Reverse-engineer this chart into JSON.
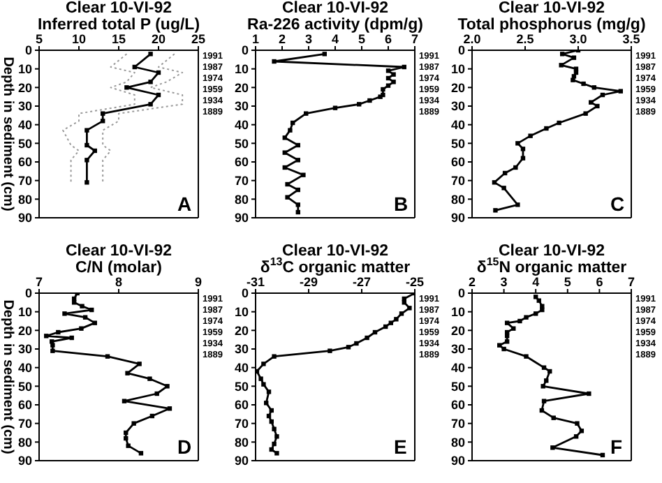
{
  "chart_data": [
    {
      "type": "line",
      "title": "Clear  10-VI-92",
      "subtitle": "Inferred total P (ug/L)",
      "ylabel": "Depth in sediment (cm)",
      "annotations": [
        "A",
        "1991",
        "1987",
        "1974",
        "1959",
        "1934",
        "1889"
      ],
      "xlim": [
        5,
        25
      ],
      "xticks": [
        5,
        10,
        15,
        20,
        25
      ],
      "ylim": [
        90,
        0
      ],
      "yticks": [
        0,
        10,
        20,
        30,
        40,
        50,
        60,
        70,
        80,
        90
      ],
      "series": [
        {
          "color": "#999999",
          "marker": "none",
          "line_style": "dotted",
          "x": [
            22,
            20,
            23,
            21,
            19,
            23,
            23,
            15,
            15,
            13,
            13,
            14,
            13,
            13
          ],
          "values": [
            2,
            9,
            12,
            17,
            20,
            24,
            29,
            34,
            38,
            43,
            51,
            54,
            59,
            71
          ]
        },
        {
          "color": "#999999",
          "marker": "none",
          "line_style": "dotted",
          "x": [
            16,
            14,
            17,
            16,
            14,
            17,
            17,
            10,
            10,
            8,
            9,
            10,
            9,
            9
          ],
          "values": [
            2,
            9,
            12,
            17,
            20,
            24,
            29,
            34,
            38,
            43,
            51,
            54,
            59,
            71
          ]
        },
        {
          "color": "#000000",
          "marker": "square",
          "line_style": "solid",
          "x": [
            19,
            17,
            20,
            19,
            16,
            20,
            19,
            13,
            13,
            11,
            11,
            12,
            11,
            11
          ],
          "values": [
            2,
            9,
            12,
            17,
            20,
            24,
            29,
            34,
            38,
            43,
            51,
            54,
            59,
            71
          ]
        }
      ]
    },
    {
      "type": "line",
      "title": "Clear  10-VI-92",
      "subtitle": "Ra-226  activity  (dpm/g)",
      "annotations": [
        "B",
        "1991",
        "1987",
        "1974",
        "1959",
        "1934",
        "1889"
      ],
      "xlim": [
        1,
        7
      ],
      "xticks": [
        1,
        2,
        3,
        4,
        5,
        6,
        7
      ],
      "ylim": [
        90,
        0
      ],
      "yticks": [
        0,
        10,
        20,
        30,
        40,
        50,
        60,
        70,
        80,
        90
      ],
      "series": [
        {
          "color": "#000000",
          "marker": "square",
          "line_style": "solid",
          "x": [
            3.6,
            1.7,
            6.6,
            6.0,
            6.2,
            6.0,
            6.2,
            6.0,
            5.8,
            5.8,
            5.7,
            5.3,
            4.9,
            4.0,
            2.9,
            2.4,
            2.3,
            2.1,
            2.6,
            2.1,
            2.6,
            2.1,
            2.8,
            2.2,
            2.6,
            2.2,
            2.6,
            2.6
          ],
          "values": [
            2,
            6,
            9,
            11,
            13,
            15,
            17,
            19,
            21,
            24,
            25,
            27,
            29,
            31,
            34,
            39,
            43,
            47,
            51,
            55,
            59,
            63,
            67,
            72,
            75,
            79,
            83,
            87
          ]
        }
      ]
    },
    {
      "type": "line",
      "title": "Clear  10-VI-92",
      "subtitle": "Total phosphorus (mg/g)",
      "annotations": [
        "C",
        "1991",
        "1987",
        "1974",
        "1959",
        "1934",
        "1889"
      ],
      "xlim": [
        2,
        3.5
      ],
      "xticks": [
        {
          "value": 2,
          "label": "2.0"
        },
        2.5,
        {
          "value": 3,
          "label": "3.0"
        },
        3.5
      ],
      "ylim": [
        90,
        0
      ],
      "yticks": [
        0,
        10,
        20,
        30,
        40,
        50,
        60,
        70,
        80,
        90
      ],
      "series": [
        {
          "color": "#000000",
          "marker": "square",
          "line_style": "solid",
          "x": [
            3.0,
            2.85,
            2.96,
            2.84,
            2.98,
            2.98,
            2.96,
            2.95,
            3.05,
            3.15,
            3.4,
            3.23,
            3.12,
            3.18,
            3.07,
            2.82,
            2.7,
            2.55,
            2.43,
            2.48,
            2.48,
            2.41,
            2.31,
            2.21,
            2.3,
            2.43,
            2.22
          ],
          "values": [
            0,
            2,
            4,
            8,
            10,
            12,
            14,
            16,
            18,
            20,
            22,
            24,
            28,
            30,
            34,
            39,
            42,
            46,
            50,
            53,
            58,
            63,
            66,
            71,
            74,
            83,
            86
          ]
        }
      ]
    },
    {
      "type": "line",
      "title": "Clear  10-VI-92",
      "subtitle": "C/N  (molar)",
      "ylabel": "Depth in sediment (cm)",
      "annotations": [
        "D",
        "1991",
        "1987",
        "1974",
        "1959",
        "1934",
        "1889"
      ],
      "xlim": [
        7,
        9
      ],
      "xticks": [
        7,
        8,
        9
      ],
      "ylim": [
        90,
        0
      ],
      "yticks": [
        0,
        10,
        20,
        30,
        40,
        50,
        60,
        70,
        80,
        90
      ],
      "series": [
        {
          "color": "#000000",
          "marker": "square",
          "line_style": "solid",
          "x": [
            7.48,
            7.44,
            7.44,
            7.54,
            7.66,
            7.32,
            7.58,
            7.7,
            7.53,
            7.24,
            7.09,
            7.41,
            7.16,
            7.17,
            7.17,
            7.86,
            8.26,
            8.11,
            8.39,
            8.61,
            8.48,
            8.07,
            8.64,
            8.42,
            8.19,
            8.09,
            8.09,
            8.12,
            8.28
          ],
          "values": [
            0,
            3,
            5,
            7,
            9,
            11,
            13,
            16,
            19,
            21,
            23,
            24,
            26,
            28,
            31,
            34,
            38,
            43,
            46,
            50,
            54,
            58,
            62,
            66,
            70,
            75,
            78,
            82,
            86
          ]
        }
      ]
    },
    {
      "type": "line",
      "title": "Clear  10-VI-92",
      "subtitle": "δ$^{13}$C organic matter",
      "annotations": [
        "E",
        "1991",
        "1987",
        "1974",
        "1959",
        "1934",
        "1889"
      ],
      "xlim": [
        -31,
        -25
      ],
      "xticks": [
        -31,
        -29,
        -27,
        -25
      ],
      "ylim": [
        90,
        0
      ],
      "yticks": [
        0,
        10,
        20,
        30,
        40,
        50,
        60,
        70,
        80,
        90
      ],
      "series": [
        {
          "color": "#000000",
          "marker": "square",
          "line_style": "solid",
          "x": [
            -25.0,
            -25.4,
            -25.4,
            -25.2,
            -25.5,
            -25.7,
            -25.9,
            -26.1,
            -26.5,
            -26.8,
            -27.2,
            -27.5,
            -28.2,
            -30.3,
            -30.7,
            -30.95,
            -30.8,
            -30.7,
            -30.5,
            -30.6,
            -30.4,
            -30.5,
            -30.4,
            -30.3,
            -30.2,
            -30.3,
            -30.4,
            -30.2
          ],
          "values": [
            0,
            3,
            5,
            8,
            11,
            14,
            16,
            18,
            21,
            24,
            27,
            29,
            31,
            34,
            38,
            42,
            46,
            49,
            53,
            59,
            63,
            66,
            69,
            73,
            77,
            81,
            84,
            86
          ]
        }
      ]
    },
    {
      "type": "line",
      "title": "Clear  10-VI-92",
      "subtitle": "δ$^{15}$N organic matter",
      "annotations": [
        "F",
        "1991",
        "1987",
        "1974",
        "1959",
        "1934",
        "1889"
      ],
      "xlim": [
        2,
        7
      ],
      "xticks": [
        2,
        3,
        4,
        5,
        6,
        7
      ],
      "ylim": [
        90,
        0
      ],
      "yticks": [
        0,
        10,
        20,
        30,
        40,
        50,
        60,
        70,
        80,
        90
      ],
      "series": [
        {
          "color": "#000000",
          "marker": "square",
          "line_style": "solid",
          "x": [
            4.0,
            4.1,
            4.2,
            4.2,
            4.0,
            3.7,
            3.5,
            3.1,
            3.3,
            3.1,
            3.1,
            3.1,
            2.86,
            3.0,
            3.7,
            4.26,
            4.44,
            4.33,
            4.23,
            5.67,
            4.26,
            4.19,
            4.56,
            5.3,
            5.44,
            5.27,
            4.53,
            6.1
          ],
          "values": [
            2,
            4,
            7,
            9,
            11,
            13,
            15,
            16,
            19,
            21,
            23,
            26,
            28,
            30,
            34,
            40,
            42,
            47,
            50,
            54,
            58,
            63,
            67,
            70,
            74,
            77,
            83,
            87
          ]
        }
      ]
    }
  ]
}
